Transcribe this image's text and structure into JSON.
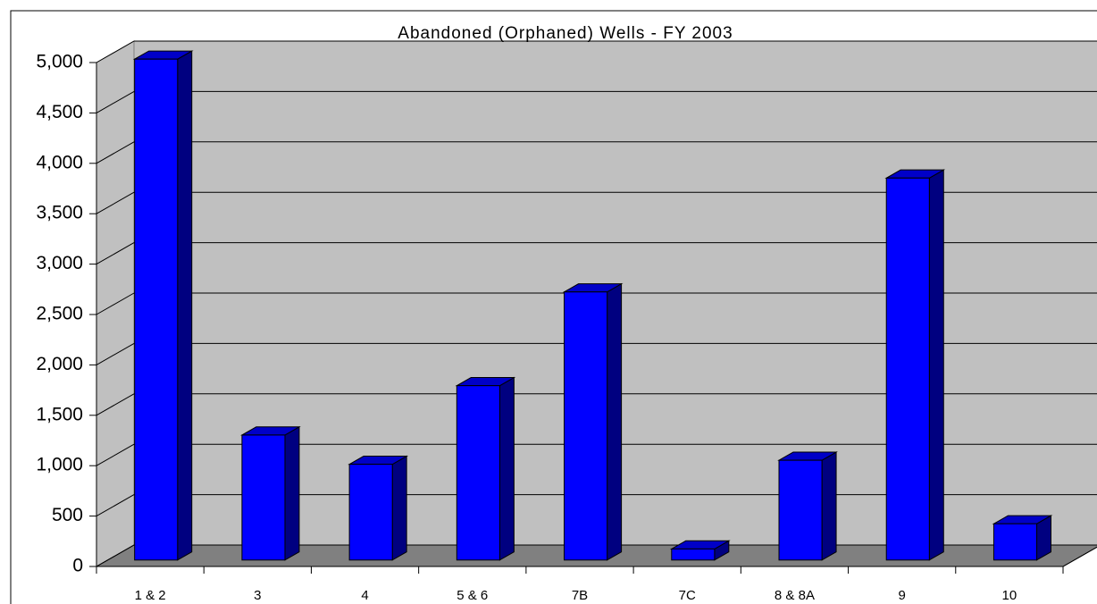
{
  "chart_data": {
    "type": "bar3d",
    "title": "Abandoned (Orphaned) Wells - FY 2003",
    "categories": [
      "1 & 2",
      "3",
      "4",
      "5 & 6",
      "7B",
      "7C",
      "8 & 8A",
      "9",
      "10"
    ],
    "values": [
      4970,
      1240,
      950,
      1730,
      2660,
      110,
      990,
      3790,
      360
    ],
    "color": "#0000ff",
    "ylim": [
      0,
      5000
    ],
    "yticks": [
      0,
      500,
      {
        "value": 1000,
        "label": "1,000"
      },
      {
        "value": 1500,
        "label": "1,500"
      },
      {
        "value": 2000,
        "label": "2,000"
      },
      {
        "value": 2500,
        "label": "2,500"
      },
      {
        "value": 3000,
        "label": "3,000"
      },
      {
        "value": 3500,
        "label": "3,500"
      },
      {
        "value": 4000,
        "label": "4,000"
      },
      {
        "value": 4500,
        "label": "4,500"
      },
      {
        "value": 5000,
        "label": "5,000"
      }
    ],
    "grid": true
  }
}
